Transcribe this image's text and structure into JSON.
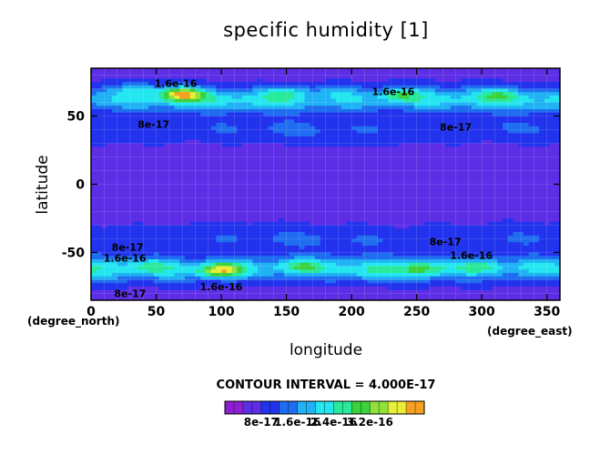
{
  "chart_data": {
    "type": "heatmap",
    "title": "specific humidity [1]",
    "xlabel": "longitude",
    "ylabel": "latitude",
    "x_unit": "(degree_east)",
    "y_unit": "(degree_north)",
    "xlim": [
      0,
      360
    ],
    "ylim": [
      -85,
      85
    ],
    "x_ticks": [
      "0",
      "50",
      "100",
      "150",
      "200",
      "250",
      "300",
      "350"
    ],
    "y_ticks": [
      "-50",
      "0",
      "50"
    ],
    "contour_interval_text": "CONTOUR INTERVAL = 4.000E-17",
    "contour_interval": 4e-17,
    "colorbar": {
      "tick_labels": [
        "8e-17",
        "1.6e-16",
        "2.4e-16",
        "3.2e-16"
      ],
      "tick_values": [
        8e-17,
        1.6e-16,
        2.4e-16,
        3.2e-16
      ],
      "levels": [
        0,
        4e-17,
        8e-17,
        1.2e-16,
        1.6e-16,
        2e-16,
        2.4e-16,
        2.8e-16,
        3.2e-16,
        3.6e-16,
        4e-16
      ],
      "colors": [
        "#8c1fd0",
        "#5d2ee6",
        "#2233ee",
        "#1f6df0",
        "#20b2f4",
        "#23e6f0",
        "#28ea9a",
        "#3cd23c",
        "#8ee23a",
        "#e8ee38",
        "#f6a020",
        "#f02a16",
        "#f5a5a5"
      ]
    },
    "contour_labels": [
      {
        "text": "1.6e-16",
        "lon": 65,
        "lat": 74
      },
      {
        "text": "1.6e-16",
        "lon": 232,
        "lat": 68
      },
      {
        "text": "8e-17",
        "lon": 48,
        "lat": 44
      },
      {
        "text": "8e-17",
        "lon": 280,
        "lat": 42
      },
      {
        "text": "8e-17",
        "lon": 28,
        "lat": -46
      },
      {
        "text": "8e-17",
        "lon": 272,
        "lat": -42
      },
      {
        "text": "1.6e-16",
        "lon": 26,
        "lat": -54
      },
      {
        "text": "1.6e-16",
        "lon": 292,
        "lat": -52
      },
      {
        "text": "1.6e-16",
        "lon": 100,
        "lat": -75
      },
      {
        "text": "8e-17",
        "lon": 30,
        "lat": -80
      }
    ],
    "maxima": [
      {
        "lon": 70,
        "lat": 66,
        "value": 3.8e-16
      },
      {
        "lon": 100,
        "lat": -63,
        "value": 3.8e-16
      },
      {
        "lon": 238,
        "lat": 66,
        "value": 2.6e-16
      },
      {
        "lon": 150,
        "lat": 67,
        "value": 2.5e-16
      },
      {
        "lon": 312,
        "lat": 66,
        "value": 2.3e-16
      },
      {
        "lon": 35,
        "lat": 70,
        "value": 2.2e-16
      },
      {
        "lon": 190,
        "lat": 69,
        "value": 2e-16
      },
      {
        "lon": 160,
        "lat": -60,
        "value": 2.4e-16
      },
      {
        "lon": 255,
        "lat": -62,
        "value": 2.5e-16
      },
      {
        "lon": 300,
        "lat": -60,
        "value": 2.3e-16
      },
      {
        "lon": 45,
        "lat": -60,
        "value": 2.1e-16
      },
      {
        "lon": 215,
        "lat": -65,
        "value": 1.9e-16
      },
      {
        "lon": 345,
        "lat": -60,
        "value": 1.8e-16
      }
    ],
    "grid": true
  }
}
